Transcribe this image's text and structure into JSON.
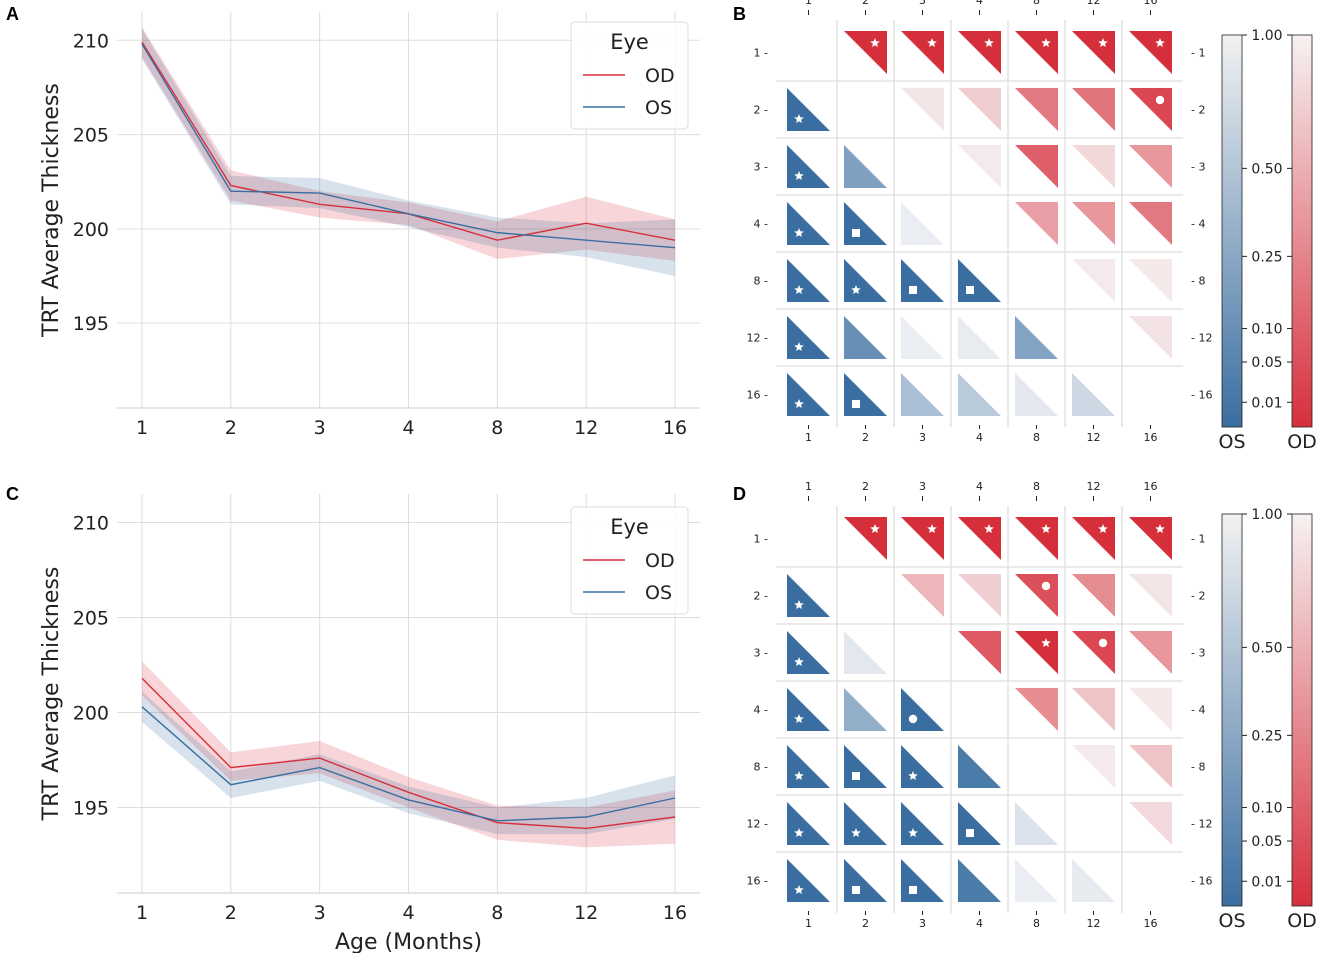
{
  "chart_data": [
    {
      "panel": "A",
      "type": "line",
      "ylabel": "TRT Average Thickness",
      "xlabel": "",
      "categories": [
        "1",
        "2",
        "3",
        "4",
        "8",
        "12",
        "16"
      ],
      "ylim": [
        190.5,
        211.5
      ],
      "yticks": [
        "195",
        "200",
        "205",
        "210"
      ],
      "legend": {
        "title": "Eye",
        "position": "top-right"
      },
      "series": [
        {
          "name": "OD",
          "color": "#d62f3c",
          "values": [
            209.9,
            202.3,
            201.3,
            200.8,
            199.4,
            200.3,
            199.4
          ],
          "lower": [
            209.1,
            201.5,
            200.6,
            200.2,
            198.4,
            198.9,
            198.3
          ],
          "upper": [
            210.7,
            203.1,
            202.0,
            201.4,
            200.4,
            201.7,
            200.5
          ]
        },
        {
          "name": "OS",
          "color": "#3a6ea1",
          "values": [
            209.8,
            202.0,
            201.9,
            200.8,
            199.8,
            199.4,
            199.0
          ],
          "lower": [
            209.0,
            201.3,
            201.1,
            200.1,
            199.0,
            198.5,
            197.5
          ],
          "upper": [
            210.6,
            202.8,
            202.7,
            201.5,
            200.6,
            200.3,
            200.5
          ]
        }
      ]
    },
    {
      "panel": "C",
      "type": "line",
      "ylabel": "TRT Average Thickness",
      "xlabel": "Age (Months)",
      "categories": [
        "1",
        "2",
        "3",
        "4",
        "8",
        "12",
        "16"
      ],
      "ylim": [
        190.5,
        211.5
      ],
      "yticks": [
        "195",
        "200",
        "205",
        "210"
      ],
      "legend": {
        "title": "Eye",
        "position": "top-right"
      },
      "series": [
        {
          "name": "OD",
          "color": "#d62f3c",
          "values": [
            201.8,
            197.1,
            197.6,
            195.8,
            194.2,
            193.9,
            194.5
          ],
          "lower": [
            200.9,
            196.4,
            196.8,
            195.0,
            193.3,
            192.9,
            193.1
          ],
          "upper": [
            202.7,
            197.9,
            198.5,
            196.6,
            195.1,
            195.0,
            195.9
          ]
        },
        {
          "name": "OS",
          "color": "#3a6ea1",
          "values": [
            200.3,
            196.2,
            197.1,
            195.4,
            194.3,
            194.5,
            195.5
          ],
          "lower": [
            199.5,
            195.5,
            196.4,
            194.7,
            193.6,
            193.6,
            194.4
          ],
          "upper": [
            201.1,
            196.9,
            197.8,
            196.1,
            195.0,
            195.5,
            196.7
          ]
        }
      ]
    },
    {
      "panel": "B",
      "type": "heatmap",
      "labels": [
        "1",
        "2",
        "3",
        "4",
        "8",
        "12",
        "16"
      ],
      "note": "Upper triangle shows OD p-values (red), lower triangle shows OS p-values (blue); 1.0 = white. Markers: star, circle, square indicate significance levels.",
      "od": [
        {
          "row": "1",
          "col": "2",
          "p": 0.0,
          "mark": "star"
        },
        {
          "row": "1",
          "col": "3",
          "p": 0.0,
          "mark": "star"
        },
        {
          "row": "1",
          "col": "4",
          "p": 0.0,
          "mark": "star"
        },
        {
          "row": "1",
          "col": "8",
          "p": 0.0,
          "mark": "star"
        },
        {
          "row": "1",
          "col": "12",
          "p": 0.0,
          "mark": "star"
        },
        {
          "row": "1",
          "col": "16",
          "p": 0.0,
          "mark": "star"
        },
        {
          "row": "2",
          "col": "3",
          "p": 0.9,
          "mark": ""
        },
        {
          "row": "2",
          "col": "4",
          "p": 0.72,
          "mark": ""
        },
        {
          "row": "2",
          "col": "8",
          "p": 0.2,
          "mark": ""
        },
        {
          "row": "2",
          "col": "12",
          "p": 0.18,
          "mark": ""
        },
        {
          "row": "2",
          "col": "16",
          "p": 0.03,
          "mark": "circle"
        },
        {
          "row": "3",
          "col": "4",
          "p": 0.95,
          "mark": ""
        },
        {
          "row": "3",
          "col": "8",
          "p": 0.1,
          "mark": ""
        },
        {
          "row": "3",
          "col": "12",
          "p": 0.8,
          "mark": ""
        },
        {
          "row": "3",
          "col": "16",
          "p": 0.35,
          "mark": ""
        },
        {
          "row": "4",
          "col": "8",
          "p": 0.4,
          "mark": ""
        },
        {
          "row": "4",
          "col": "12",
          "p": 0.35,
          "mark": ""
        },
        {
          "row": "4",
          "col": "16",
          "p": 0.2,
          "mark": ""
        },
        {
          "row": "8",
          "col": "12",
          "p": 0.95,
          "mark": ""
        },
        {
          "row": "8",
          "col": "16",
          "p": 0.93,
          "mark": ""
        },
        {
          "row": "12",
          "col": "16",
          "p": 0.88,
          "mark": ""
        }
      ],
      "os": [
        {
          "row": "2",
          "col": "1",
          "p": 0.0,
          "mark": "star"
        },
        {
          "row": "3",
          "col": "1",
          "p": 0.0,
          "mark": "star"
        },
        {
          "row": "3",
          "col": "2",
          "p": 0.2,
          "mark": ""
        },
        {
          "row": "4",
          "col": "1",
          "p": 0.0,
          "mark": "star"
        },
        {
          "row": "4",
          "col": "2",
          "p": 0.0,
          "mark": "square"
        },
        {
          "row": "4",
          "col": "3",
          "p": 0.95,
          "mark": ""
        },
        {
          "row": "8",
          "col": "1",
          "p": 0.0,
          "mark": "star"
        },
        {
          "row": "8",
          "col": "2",
          "p": 0.0,
          "mark": "star"
        },
        {
          "row": "8",
          "col": "3",
          "p": 0.0,
          "mark": "square"
        },
        {
          "row": "8",
          "col": "4",
          "p": 0.0,
          "mark": "square"
        },
        {
          "row": "12",
          "col": "1",
          "p": 0.0,
          "mark": "star"
        },
        {
          "row": "12",
          "col": "2",
          "p": 0.1,
          "mark": ""
        },
        {
          "row": "12",
          "col": "3",
          "p": 0.95,
          "mark": ""
        },
        {
          "row": "12",
          "col": "4",
          "p": 0.93,
          "mark": ""
        },
        {
          "row": "12",
          "col": "8",
          "p": 0.22,
          "mark": ""
        },
        {
          "row": "16",
          "col": "1",
          "p": 0.0,
          "mark": "star"
        },
        {
          "row": "16",
          "col": "2",
          "p": 0.0,
          "mark": "square"
        },
        {
          "row": "16",
          "col": "3",
          "p": 0.45,
          "mark": ""
        },
        {
          "row": "16",
          "col": "4",
          "p": 0.55,
          "mark": ""
        },
        {
          "row": "16",
          "col": "8",
          "p": 0.9,
          "mark": ""
        },
        {
          "row": "16",
          "col": "12",
          "p": 0.7,
          "mark": ""
        }
      ]
    },
    {
      "panel": "D",
      "type": "heatmap",
      "labels": [
        "1",
        "2",
        "3",
        "4",
        "8",
        "12",
        "16"
      ],
      "note": "Upper triangle shows OD p-values (red), lower triangle shows OS p-values (blue); 1.0 = white.",
      "od": [
        {
          "row": "1",
          "col": "2",
          "p": 0.0,
          "mark": "star"
        },
        {
          "row": "1",
          "col": "3",
          "p": 0.0,
          "mark": "star"
        },
        {
          "row": "1",
          "col": "4",
          "p": 0.0,
          "mark": "star"
        },
        {
          "row": "1",
          "col": "8",
          "p": 0.0,
          "mark": "star"
        },
        {
          "row": "1",
          "col": "12",
          "p": 0.0,
          "mark": "star"
        },
        {
          "row": "1",
          "col": "16",
          "p": 0.0,
          "mark": "star"
        },
        {
          "row": "2",
          "col": "3",
          "p": 0.55,
          "mark": ""
        },
        {
          "row": "2",
          "col": "4",
          "p": 0.72,
          "mark": ""
        },
        {
          "row": "2",
          "col": "8",
          "p": 0.05,
          "mark": "circle"
        },
        {
          "row": "2",
          "col": "12",
          "p": 0.3,
          "mark": ""
        },
        {
          "row": "2",
          "col": "16",
          "p": 0.9,
          "mark": ""
        },
        {
          "row": "3",
          "col": "4",
          "p": 0.08,
          "mark": ""
        },
        {
          "row": "3",
          "col": "8",
          "p": 0.0,
          "mark": "star"
        },
        {
          "row": "3",
          "col": "12",
          "p": 0.03,
          "mark": "circle"
        },
        {
          "row": "3",
          "col": "16",
          "p": 0.35,
          "mark": ""
        },
        {
          "row": "4",
          "col": "8",
          "p": 0.3,
          "mark": ""
        },
        {
          "row": "4",
          "col": "12",
          "p": 0.65,
          "mark": ""
        },
        {
          "row": "4",
          "col": "16",
          "p": 0.93,
          "mark": ""
        },
        {
          "row": "8",
          "col": "12",
          "p": 0.95,
          "mark": ""
        },
        {
          "row": "8",
          "col": "16",
          "p": 0.65,
          "mark": ""
        },
        {
          "row": "12",
          "col": "16",
          "p": 0.82,
          "mark": ""
        }
      ],
      "os": [
        {
          "row": "2",
          "col": "1",
          "p": 0.0,
          "mark": "star"
        },
        {
          "row": "3",
          "col": "1",
          "p": 0.0,
          "mark": "star"
        },
        {
          "row": "3",
          "col": "2",
          "p": 0.88,
          "mark": ""
        },
        {
          "row": "4",
          "col": "1",
          "p": 0.0,
          "mark": "star"
        },
        {
          "row": "4",
          "col": "2",
          "p": 0.3,
          "mark": ""
        },
        {
          "row": "4",
          "col": "3",
          "p": 0.0,
          "mark": "circle"
        },
        {
          "row": "8",
          "col": "1",
          "p": 0.0,
          "mark": "star"
        },
        {
          "row": "8",
          "col": "2",
          "p": 0.0,
          "mark": "square"
        },
        {
          "row": "8",
          "col": "3",
          "p": 0.0,
          "mark": "star"
        },
        {
          "row": "8",
          "col": "4",
          "p": 0.02,
          "mark": ""
        },
        {
          "row": "12",
          "col": "1",
          "p": 0.0,
          "mark": "star"
        },
        {
          "row": "12",
          "col": "2",
          "p": 0.0,
          "mark": "star"
        },
        {
          "row": "12",
          "col": "3",
          "p": 0.0,
          "mark": "star"
        },
        {
          "row": "12",
          "col": "4",
          "p": 0.0,
          "mark": "square"
        },
        {
          "row": "12",
          "col": "8",
          "p": 0.82,
          "mark": ""
        },
        {
          "row": "16",
          "col": "1",
          "p": 0.0,
          "mark": "star"
        },
        {
          "row": "16",
          "col": "2",
          "p": 0.0,
          "mark": "square"
        },
        {
          "row": "16",
          "col": "3",
          "p": 0.0,
          "mark": "square"
        },
        {
          "row": "16",
          "col": "4",
          "p": 0.02,
          "mark": ""
        },
        {
          "row": "16",
          "col": "8",
          "p": 0.95,
          "mark": ""
        },
        {
          "row": "16",
          "col": "12",
          "p": 0.92,
          "mark": ""
        }
      ]
    }
  ],
  "colorbar": {
    "ticks": [
      "0.01",
      "0.05",
      "0.10",
      "0.25",
      "0.50",
      "1.00"
    ],
    "tick_values": [
      0.01,
      0.05,
      0.1,
      0.25,
      0.5,
      1.0
    ],
    "labels": [
      "OS",
      "OD"
    ],
    "os_color": "#3a6ea1",
    "od_color": "#d62f3c",
    "white": "#f5f5f5"
  },
  "panel_labels": [
    "A",
    "B",
    "C",
    "D"
  ]
}
